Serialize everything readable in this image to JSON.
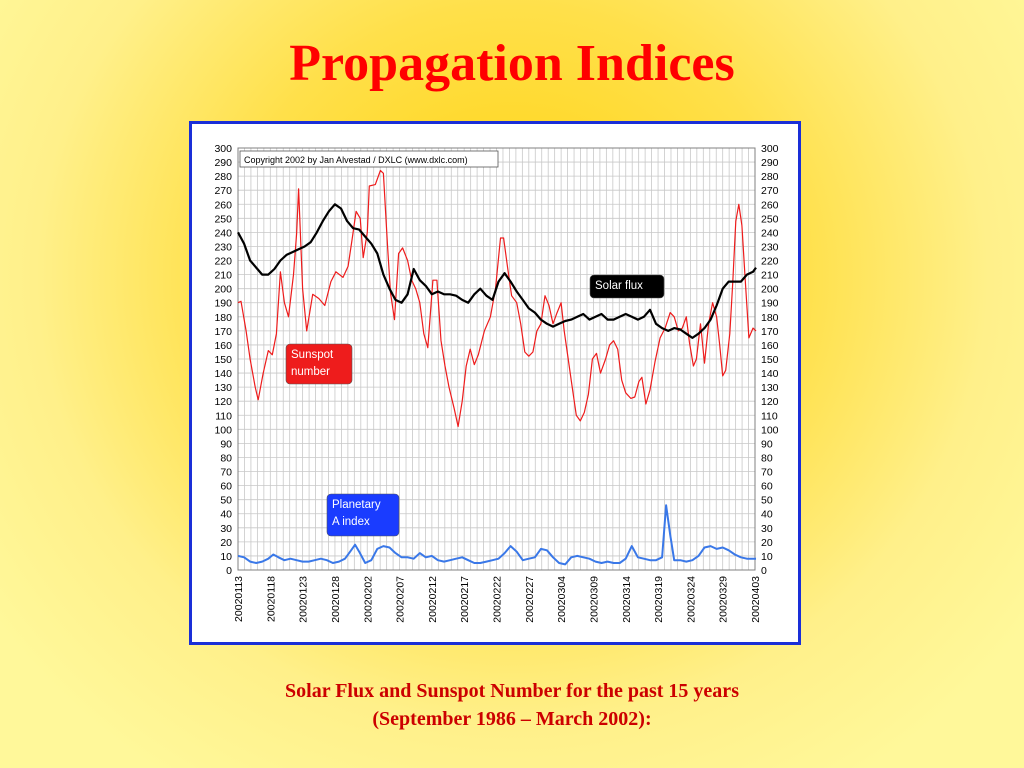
{
  "slide": {
    "title": "Propagation Indices",
    "caption_line1": "Solar Flux and Sunspot Number for the past 15 years",
    "caption_line2": "(September 1986 – March 2002):"
  },
  "colors": {
    "title": "#ff0000",
    "caption": "#cc0000",
    "frame_border": "#1a2fd8",
    "sunspot": "#ee1c1c",
    "solar_flux": "#000000",
    "a_index": "#3a78e8"
  },
  "chart_data": {
    "type": "line",
    "copyright": "Copyright 2002 by Jan Alvestad / DXLC (www.dxlc.com)",
    "ylim": [
      0,
      300
    ],
    "yticks": [
      0,
      10,
      20,
      30,
      40,
      50,
      60,
      70,
      80,
      90,
      100,
      110,
      120,
      130,
      140,
      150,
      160,
      170,
      180,
      190,
      200,
      210,
      220,
      230,
      240,
      250,
      260,
      270,
      280,
      290,
      300
    ],
    "x_labels": [
      "20020113",
      "20020118",
      "20020123",
      "20020128",
      "20020202",
      "20020207",
      "20020212",
      "20020217",
      "20020222",
      "20020227",
      "20020304",
      "20020309",
      "20020314",
      "20020319",
      "20020324",
      "20020329",
      "20020403"
    ],
    "grid": true,
    "series": [
      {
        "name": "Sunspot\nnumber",
        "color": "#ee1c1c",
        "values": [
          [
            0,
            190
          ],
          [
            0.3,
            191
          ],
          [
            0.8,
            170
          ],
          [
            1.2,
            150
          ],
          [
            1.7,
            130
          ],
          [
            2.0,
            121
          ],
          [
            2.5,
            140
          ],
          [
            3.0,
            156
          ],
          [
            3.4,
            153
          ],
          [
            3.8,
            168
          ],
          [
            4.2,
            212
          ],
          [
            4.6,
            190
          ],
          [
            5.0,
            180
          ],
          [
            5.5,
            210
          ],
          [
            5.8,
            239
          ],
          [
            6.0,
            271
          ],
          [
            6.4,
            200
          ],
          [
            6.8,
            170
          ],
          [
            7.1,
            183
          ],
          [
            7.4,
            196
          ],
          [
            8.0,
            193
          ],
          [
            8.6,
            188
          ],
          [
            9.2,
            205
          ],
          [
            9.7,
            212
          ],
          [
            10.4,
            208
          ],
          [
            10.9,
            216
          ],
          [
            11.3,
            235
          ],
          [
            11.7,
            255
          ],
          [
            12.1,
            250
          ],
          [
            12.4,
            222
          ],
          [
            12.8,
            240
          ],
          [
            13.0,
            273
          ],
          [
            13.6,
            274
          ],
          [
            14.1,
            284
          ],
          [
            14.4,
            282
          ],
          [
            14.8,
            232
          ],
          [
            15.1,
            197
          ],
          [
            15.5,
            178
          ],
          [
            15.9,
            225
          ],
          [
            16.3,
            229
          ],
          [
            16.8,
            220
          ],
          [
            17.2,
            206
          ],
          [
            17.6,
            200
          ],
          [
            18.0,
            190
          ],
          [
            18.4,
            168
          ],
          [
            18.8,
            158
          ],
          [
            19.3,
            206
          ],
          [
            19.7,
            206
          ],
          [
            20.1,
            163
          ],
          [
            20.5,
            145
          ],
          [
            20.9,
            130
          ],
          [
            21.4,
            115
          ],
          [
            21.8,
            102
          ],
          [
            22.2,
            120
          ],
          [
            22.6,
            145
          ],
          [
            23.0,
            157
          ],
          [
            23.4,
            146
          ],
          [
            23.8,
            153
          ],
          [
            24.4,
            170
          ],
          [
            25.0,
            180
          ],
          [
            25.5,
            200
          ],
          [
            26.0,
            236
          ],
          [
            26.3,
            236
          ],
          [
            26.7,
            215
          ],
          [
            27.1,
            195
          ],
          [
            27.6,
            190
          ],
          [
            28.0,
            175
          ],
          [
            28.4,
            155
          ],
          [
            28.8,
            152
          ],
          [
            29.2,
            155
          ],
          [
            29.6,
            170
          ],
          [
            30.0,
            175
          ],
          [
            30.4,
            195
          ],
          [
            30.8,
            188
          ],
          [
            31.2,
            175
          ],
          [
            31.6,
            183
          ],
          [
            32.0,
            190
          ],
          [
            32.3,
            170
          ],
          [
            32.7,
            150
          ],
          [
            33.1,
            130
          ],
          [
            33.5,
            110
          ],
          [
            33.9,
            106
          ],
          [
            34.3,
            112
          ],
          [
            34.7,
            125
          ],
          [
            35.1,
            150
          ],
          [
            35.5,
            154
          ],
          [
            35.9,
            140
          ],
          [
            36.4,
            150
          ],
          [
            36.8,
            160
          ],
          [
            37.2,
            163
          ],
          [
            37.6,
            157
          ],
          [
            38.0,
            135
          ],
          [
            38.4,
            126
          ],
          [
            38.9,
            122
          ],
          [
            39.3,
            123
          ],
          [
            39.7,
            134
          ],
          [
            40.0,
            137
          ],
          [
            40.4,
            118
          ],
          [
            40.8,
            128
          ],
          [
            41.3,
            148
          ],
          [
            41.8,
            165
          ],
          [
            42.3,
            172
          ],
          [
            42.8,
            183
          ],
          [
            43.2,
            180
          ],
          [
            43.6,
            170
          ],
          [
            44.0,
            172
          ],
          [
            44.4,
            180
          ],
          [
            44.7,
            162
          ],
          [
            45.1,
            145
          ],
          [
            45.4,
            150
          ],
          [
            45.8,
            175
          ],
          [
            46.2,
            147
          ],
          [
            46.6,
            175
          ],
          [
            47.0,
            190
          ],
          [
            47.4,
            180
          ],
          [
            47.7,
            160
          ],
          [
            48.0,
            138
          ],
          [
            48.3,
            142
          ],
          [
            48.7,
            168
          ],
          [
            49.0,
            205
          ],
          [
            49.3,
            248
          ],
          [
            49.6,
            260
          ],
          [
            49.9,
            245
          ],
          [
            50.2,
            210
          ],
          [
            50.6,
            165
          ],
          [
            51.0,
            172
          ],
          [
            51.3,
            170
          ]
        ]
      },
      {
        "name": "Solar flux",
        "color": "#000000",
        "values": [
          [
            0,
            240
          ],
          [
            0.6,
            232
          ],
          [
            1.2,
            220
          ],
          [
            1.8,
            215
          ],
          [
            2.4,
            210
          ],
          [
            3.0,
            210
          ],
          [
            3.6,
            214
          ],
          [
            4.2,
            220
          ],
          [
            4.8,
            224
          ],
          [
            5.4,
            226
          ],
          [
            6.0,
            228
          ],
          [
            6.6,
            230
          ],
          [
            7.2,
            233
          ],
          [
            7.8,
            240
          ],
          [
            8.4,
            248
          ],
          [
            9.0,
            255
          ],
          [
            9.6,
            260
          ],
          [
            10.2,
            257
          ],
          [
            10.8,
            248
          ],
          [
            11.4,
            243
          ],
          [
            12.0,
            242
          ],
          [
            12.6,
            237
          ],
          [
            13.2,
            232
          ],
          [
            13.8,
            225
          ],
          [
            14.4,
            210
          ],
          [
            15.0,
            200
          ],
          [
            15.6,
            192
          ],
          [
            16.2,
            190
          ],
          [
            16.8,
            196
          ],
          [
            17.4,
            214
          ],
          [
            18.0,
            206
          ],
          [
            18.6,
            202
          ],
          [
            19.2,
            196
          ],
          [
            19.8,
            198
          ],
          [
            20.4,
            196
          ],
          [
            21.0,
            196
          ],
          [
            21.6,
            195
          ],
          [
            22.2,
            192
          ],
          [
            22.8,
            190
          ],
          [
            23.4,
            196
          ],
          [
            24.0,
            200
          ],
          [
            24.6,
            195
          ],
          [
            25.2,
            192
          ],
          [
            25.8,
            205
          ],
          [
            26.4,
            211
          ],
          [
            27.0,
            205
          ],
          [
            27.6,
            198
          ],
          [
            28.2,
            192
          ],
          [
            28.8,
            186
          ],
          [
            29.4,
            183
          ],
          [
            30.0,
            178
          ],
          [
            30.6,
            175
          ],
          [
            31.2,
            173
          ],
          [
            31.8,
            175
          ],
          [
            32.4,
            177
          ],
          [
            33.0,
            178
          ],
          [
            33.6,
            180
          ],
          [
            34.2,
            182
          ],
          [
            34.8,
            178
          ],
          [
            35.4,
            180
          ],
          [
            36.0,
            182
          ],
          [
            36.6,
            178
          ],
          [
            37.2,
            178
          ],
          [
            37.8,
            180
          ],
          [
            38.4,
            182
          ],
          [
            39.0,
            180
          ],
          [
            39.6,
            178
          ],
          [
            40.2,
            180
          ],
          [
            40.8,
            185
          ],
          [
            41.4,
            175
          ],
          [
            42.0,
            172
          ],
          [
            42.6,
            170
          ],
          [
            43.2,
            172
          ],
          [
            43.8,
            171
          ],
          [
            44.4,
            168
          ],
          [
            45.0,
            165
          ],
          [
            45.6,
            168
          ],
          [
            46.2,
            172
          ],
          [
            46.8,
            178
          ],
          [
            47.4,
            188
          ],
          [
            48.0,
            200
          ],
          [
            48.6,
            205
          ],
          [
            49.2,
            205
          ],
          [
            49.8,
            205
          ],
          [
            50.4,
            210
          ],
          [
            51.0,
            212
          ],
          [
            51.3,
            215
          ]
        ]
      },
      {
        "name": "Planetary\nA index",
        "color": "#3a78e8",
        "values": [
          [
            0,
            10
          ],
          [
            0.6,
            9
          ],
          [
            1.2,
            6
          ],
          [
            1.8,
            5
          ],
          [
            2.4,
            6
          ],
          [
            3.0,
            8
          ],
          [
            3.5,
            11
          ],
          [
            4.0,
            9
          ],
          [
            4.6,
            7
          ],
          [
            5.2,
            8
          ],
          [
            5.8,
            7
          ],
          [
            6.4,
            6
          ],
          [
            7.0,
            6
          ],
          [
            7.6,
            7
          ],
          [
            8.2,
            8
          ],
          [
            8.8,
            7
          ],
          [
            9.4,
            5
          ],
          [
            10.0,
            6
          ],
          [
            10.6,
            8
          ],
          [
            11.2,
            14
          ],
          [
            11.6,
            18
          ],
          [
            12.0,
            13
          ],
          [
            12.6,
            5
          ],
          [
            13.2,
            7
          ],
          [
            13.8,
            15
          ],
          [
            14.4,
            17
          ],
          [
            15.0,
            16
          ],
          [
            15.6,
            12
          ],
          [
            16.2,
            9
          ],
          [
            16.8,
            9
          ],
          [
            17.4,
            8
          ],
          [
            18.0,
            12
          ],
          [
            18.6,
            9
          ],
          [
            19.2,
            10
          ],
          [
            19.8,
            7
          ],
          [
            20.4,
            6
          ],
          [
            21.0,
            7
          ],
          [
            21.6,
            8
          ],
          [
            22.2,
            9
          ],
          [
            22.8,
            7
          ],
          [
            23.4,
            5
          ],
          [
            24.0,
            5
          ],
          [
            24.6,
            6
          ],
          [
            25.2,
            7
          ],
          [
            25.8,
            8
          ],
          [
            26.4,
            12
          ],
          [
            27.0,
            17
          ],
          [
            27.6,
            13
          ],
          [
            28.2,
            7
          ],
          [
            28.8,
            8
          ],
          [
            29.4,
            9
          ],
          [
            30.0,
            15
          ],
          [
            30.6,
            14
          ],
          [
            31.2,
            9
          ],
          [
            31.8,
            5
          ],
          [
            32.4,
            4
          ],
          [
            33.0,
            9
          ],
          [
            33.6,
            10
          ],
          [
            34.2,
            9
          ],
          [
            34.8,
            8
          ],
          [
            35.4,
            6
          ],
          [
            36.0,
            5
          ],
          [
            36.6,
            6
          ],
          [
            37.2,
            5
          ],
          [
            37.8,
            5
          ],
          [
            38.4,
            8
          ],
          [
            39.0,
            17
          ],
          [
            39.6,
            9
          ],
          [
            40.2,
            8
          ],
          [
            40.8,
            7
          ],
          [
            41.4,
            7
          ],
          [
            42.0,
            9
          ],
          [
            42.4,
            46
          ],
          [
            42.8,
            25
          ],
          [
            43.2,
            7
          ],
          [
            43.8,
            7
          ],
          [
            44.4,
            6
          ],
          [
            45.0,
            7
          ],
          [
            45.6,
            10
          ],
          [
            46.2,
            16
          ],
          [
            46.8,
            17
          ],
          [
            47.4,
            15
          ],
          [
            48.0,
            16
          ],
          [
            48.6,
            14
          ],
          [
            49.2,
            11
          ],
          [
            49.8,
            9
          ],
          [
            50.4,
            8
          ],
          [
            51.0,
            8
          ],
          [
            51.3,
            8
          ]
        ]
      }
    ]
  }
}
